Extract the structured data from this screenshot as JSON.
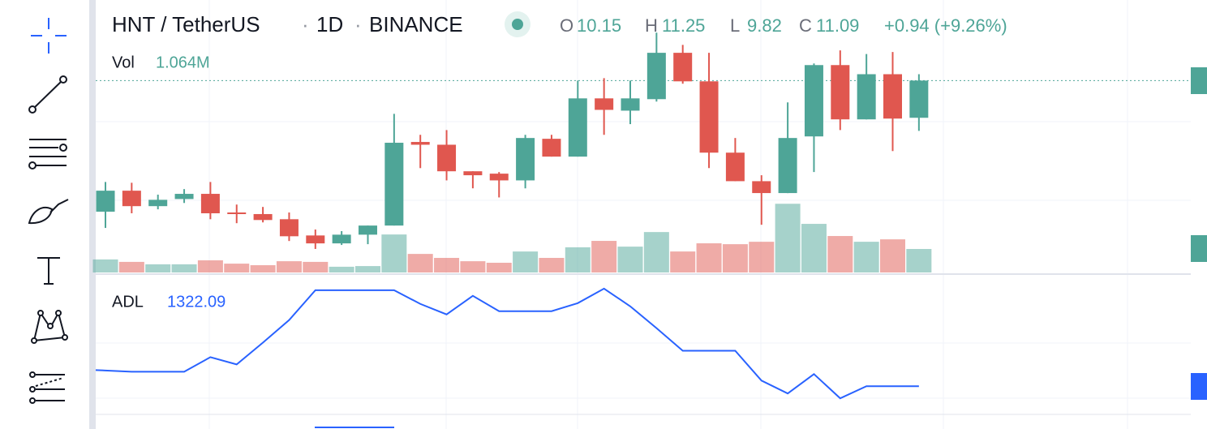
{
  "header": {
    "symbol": "HNT / TetherUS",
    "interval": "1D",
    "exchange": "BINANCE",
    "ohlc": [
      {
        "label": "O",
        "value": 10.15
      },
      {
        "label": "H",
        "value": 11.25
      },
      {
        "label": "L",
        "value": 9.82
      },
      {
        "label": "C",
        "value": 11.09
      }
    ],
    "change": "+0.94 (+9.26%)"
  },
  "chart_data": [
    {
      "type": "candlestick",
      "ylim": [
        6,
        13
      ],
      "up_color": "#4ea597",
      "down_color": "#e0574f",
      "open": [
        7.78,
        8.31,
        7.92,
        8.1,
        8.23,
        7.76,
        7.72,
        7.59,
        7.18,
        6.98,
        7.2,
        7.43,
        9.54,
        9.47,
        8.8,
        8.74,
        8.57,
        9.62,
        9.17,
        10.64,
        10.33,
        10.62,
        11.79,
        11.07,
        9.27,
        8.55,
        8.25,
        9.68,
        11.48,
        10.11,
        11.25,
        10.15
      ],
      "high": [
        8.53,
        8.51,
        8.21,
        8.35,
        8.53,
        7.96,
        7.9,
        7.76,
        7.33,
        7.29,
        7.43,
        10.25,
        9.72,
        9.84,
        8.8,
        8.78,
        9.72,
        9.72,
        11.09,
        11.15,
        11.09,
        12.3,
        11.99,
        11.79,
        9.64,
        8.7,
        10.54,
        11.52,
        11.85,
        11.76,
        11.81,
        11.25
      ],
      "low": [
        7.37,
        7.74,
        7.84,
        8.0,
        7.59,
        7.49,
        7.51,
        7.04,
        6.84,
        6.94,
        6.96,
        7.43,
        8.88,
        8.57,
        8.37,
        8.14,
        8.37,
        9.17,
        9.17,
        9.72,
        9.99,
        10.56,
        11.01,
        8.88,
        8.55,
        7.45,
        8.25,
        8.78,
        9.84,
        10.11,
        9.31,
        9.82
      ],
      "close": [
        8.31,
        7.92,
        8.08,
        8.23,
        7.74,
        7.72,
        7.57,
        7.16,
        6.98,
        7.2,
        7.43,
        9.52,
        9.47,
        8.8,
        8.7,
        8.57,
        9.64,
        9.17,
        10.64,
        10.35,
        10.64,
        11.79,
        11.07,
        9.27,
        8.55,
        8.25,
        9.64,
        11.48,
        10.11,
        11.25,
        10.13,
        11.09
      ]
    },
    {
      "type": "bar",
      "title": "Vol",
      "value_label": "1.064M",
      "ylim": [
        0,
        12
      ],
      "values": [
        0.59,
        0.48,
        0.37,
        0.37,
        0.55,
        0.4,
        0.33,
        0.51,
        0.48,
        0.26,
        0.29,
        1.72,
        0.84,
        0.66,
        0.51,
        0.44,
        0.95,
        0.66,
        1.14,
        1.43,
        1.17,
        1.83,
        0.95,
        1.32,
        1.28,
        1.39,
        3.11,
        2.2,
        1.65,
        1.39,
        1.5,
        1.064
      ]
    },
    {
      "type": "line",
      "title": "ADL",
      "last_value": 1322.09,
      "color": "#2962ff",
      "ylim": [
        -800,
        6800
      ],
      "values": [
        2122.09,
        2042.09,
        2042.09,
        2042.09,
        2762.09,
        2402.09,
        3482.09,
        4602.09,
        6082.09,
        6082.09,
        6082.09,
        6082.09,
        5402.09,
        4882.09,
        5802.09,
        5042.09,
        5042.09,
        5042.09,
        5442.09,
        6162.09,
        5282.09,
        4202.09,
        3082.09,
        3082.09,
        3082.09,
        1602.09,
        962.09,
        1922.09,
        722.09,
        1322.09,
        1322.09,
        1322.09
      ]
    }
  ]
}
